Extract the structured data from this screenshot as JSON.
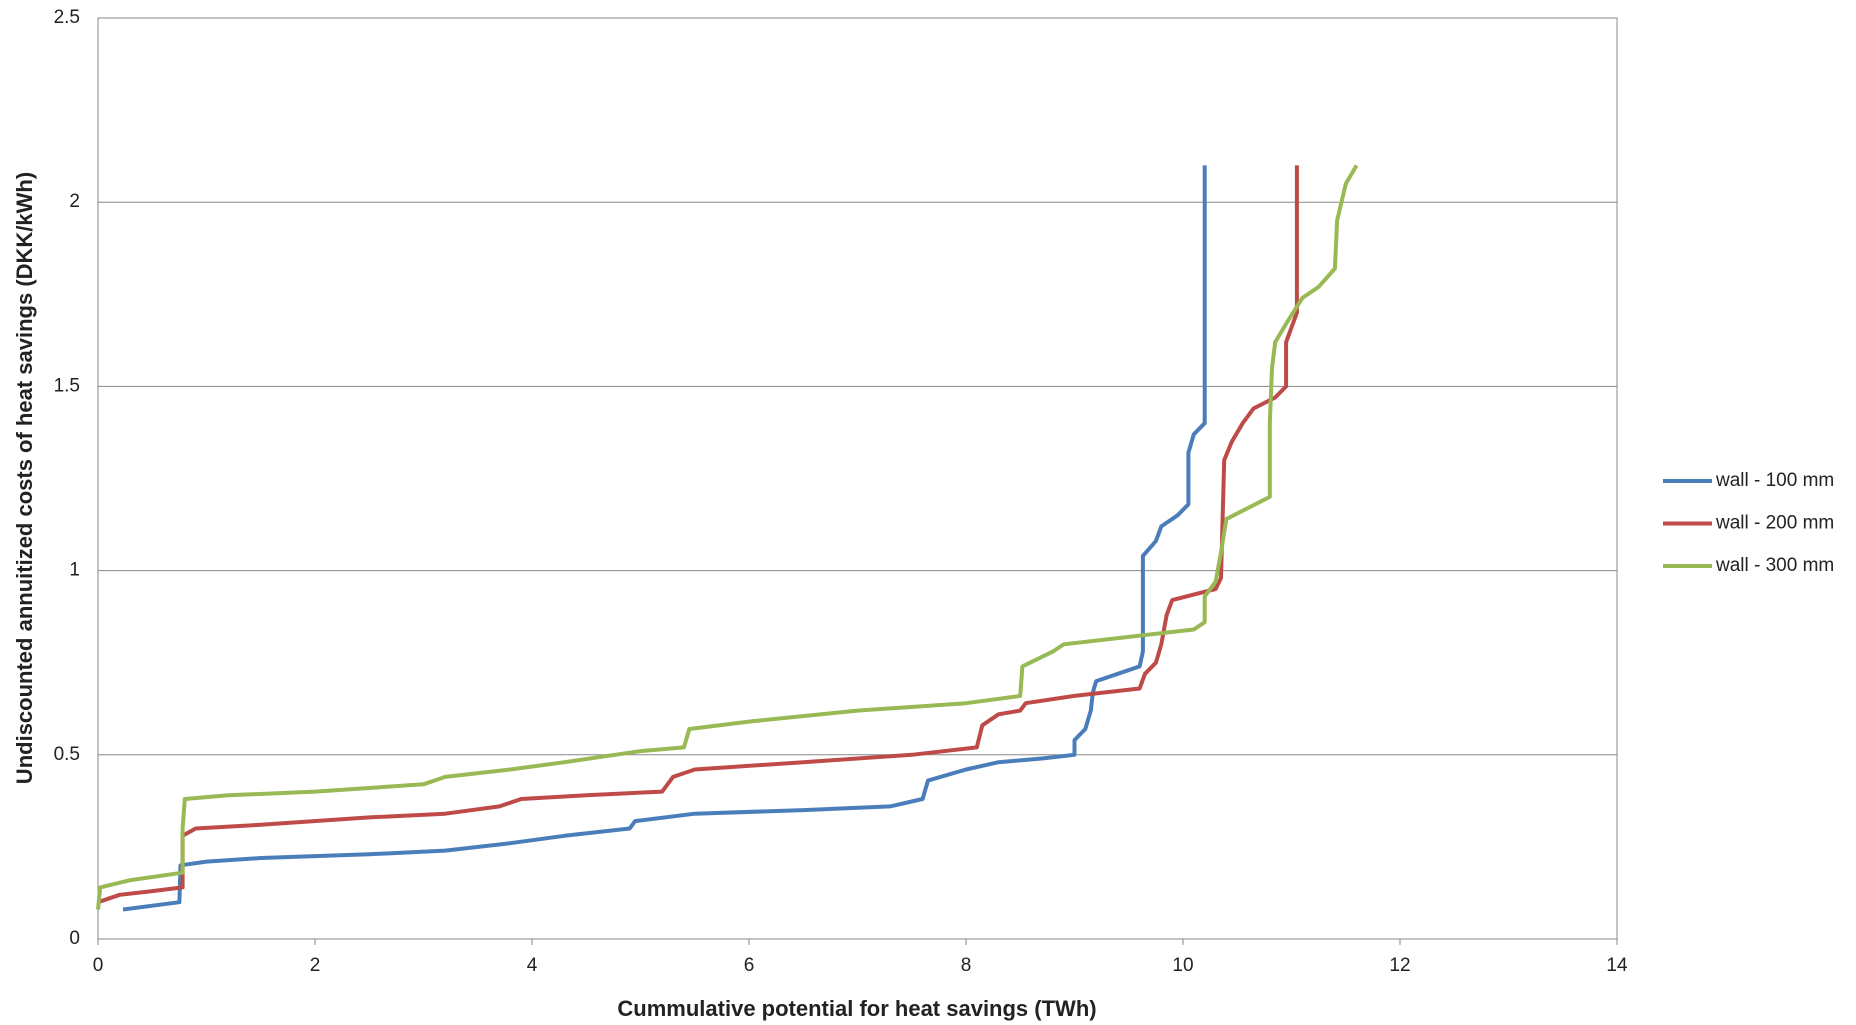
{
  "chart_data": {
    "type": "line",
    "xlabel": "Cummulative potential for heat savings (TWh)",
    "ylabel": "Undiscounted  annuitized costs of heat savings (DKK/kWh)",
    "xlim": [
      0,
      14
    ],
    "xticks": [
      0,
      2,
      4,
      6,
      8,
      10,
      12,
      14
    ],
    "ylim": [
      0,
      2.5
    ],
    "yticks": [
      0,
      0.5,
      1,
      1.5,
      2,
      2.5
    ],
    "grid": true,
    "legend": "right",
    "series": [
      {
        "name": "wall - 100 mm",
        "color": "#4a7ebb",
        "x": [
          0.23,
          0.75,
          0.76,
          1.0,
          1.5,
          2.5,
          3.2,
          3.8,
          4.3,
          4.9,
          4.95,
          5.5,
          6.5,
          7.3,
          7.6,
          7.65,
          8.0,
          8.3,
          8.7,
          9.0,
          9.0,
          9.1,
          9.15,
          9.17,
          9.2,
          9.4,
          9.6,
          9.63,
          9.63,
          9.75,
          9.8,
          9.95,
          10.05,
          10.05,
          10.1,
          10.2,
          10.2
        ],
        "values": [
          0.08,
          0.1,
          0.2,
          0.21,
          0.22,
          0.23,
          0.24,
          0.26,
          0.28,
          0.3,
          0.32,
          0.34,
          0.35,
          0.36,
          0.38,
          0.43,
          0.46,
          0.48,
          0.49,
          0.5,
          0.54,
          0.57,
          0.62,
          0.67,
          0.7,
          0.72,
          0.74,
          0.78,
          1.04,
          1.08,
          1.12,
          1.15,
          1.18,
          1.32,
          1.37,
          1.4,
          2.1
        ]
      },
      {
        "name": "wall - 200 mm",
        "color": "#be4b48",
        "x": [
          0,
          0.2,
          0.5,
          0.78,
          0.78,
          0.9,
          1.5,
          2.5,
          3.2,
          3.7,
          3.9,
          4.5,
          5.2,
          5.3,
          5.5,
          6.5,
          7.5,
          8.1,
          8.15,
          8.3,
          8.5,
          8.55,
          9.0,
          9.6,
          9.65,
          9.75,
          9.8,
          9.85,
          9.9,
          10.3,
          10.35,
          10.38,
          10.45,
          10.55,
          10.65,
          10.85,
          10.95,
          10.95,
          11.05,
          11.05,
          11.05
        ],
        "values": [
          0.1,
          0.12,
          0.13,
          0.14,
          0.28,
          0.3,
          0.31,
          0.33,
          0.34,
          0.36,
          0.38,
          0.39,
          0.4,
          0.44,
          0.46,
          0.48,
          0.5,
          0.52,
          0.58,
          0.61,
          0.62,
          0.64,
          0.66,
          0.68,
          0.72,
          0.75,
          0.8,
          0.88,
          0.92,
          0.95,
          0.98,
          1.3,
          1.35,
          1.4,
          1.44,
          1.47,
          1.5,
          1.62,
          1.7,
          1.75,
          2.1
        ]
      },
      {
        "name": "wall - 300 mm",
        "color": "#98b954",
        "x": [
          0,
          0.02,
          0.3,
          0.78,
          0.78,
          0.8,
          1.2,
          2.0,
          3.0,
          3.2,
          3.8,
          4.3,
          5.0,
          5.4,
          5.45,
          6.0,
          7.0,
          8.0,
          8.5,
          8.52,
          8.8,
          8.9,
          9.5,
          10.1,
          10.2,
          10.2,
          10.3,
          10.35,
          10.4,
          10.8,
          10.8,
          10.82,
          10.85,
          10.95,
          11.1,
          11.25,
          11.4,
          11.42,
          11.5,
          11.6
        ],
        "values": [
          0.08,
          0.14,
          0.16,
          0.18,
          0.3,
          0.38,
          0.39,
          0.4,
          0.42,
          0.44,
          0.46,
          0.48,
          0.51,
          0.52,
          0.57,
          0.59,
          0.62,
          0.64,
          0.66,
          0.74,
          0.78,
          0.8,
          0.82,
          0.84,
          0.86,
          0.93,
          0.97,
          1.05,
          1.14,
          1.2,
          1.4,
          1.55,
          1.62,
          1.67,
          1.74,
          1.77,
          1.82,
          1.95,
          2.05,
          2.1
        ]
      }
    ]
  }
}
